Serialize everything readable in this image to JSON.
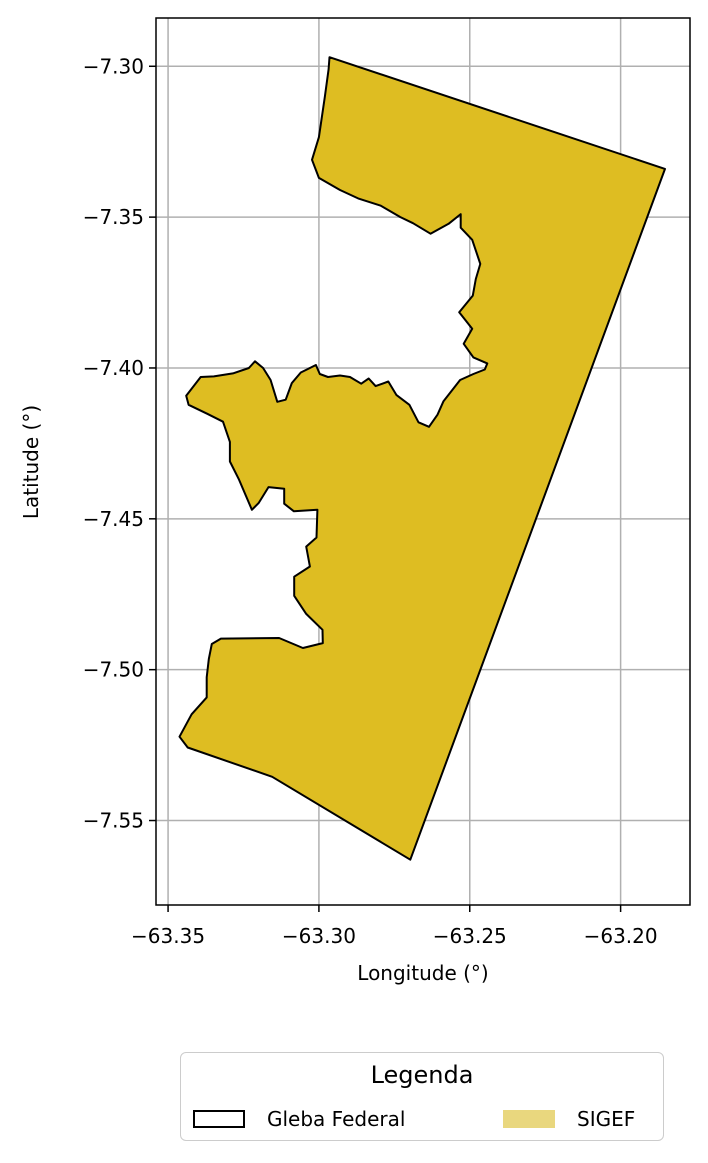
{
  "map": {
    "xlabel": "Longitude (°)",
    "ylabel": "Latitude (°)",
    "xlim": [
      -63.354,
      -63.177
    ],
    "ylim": [
      -7.578,
      -7.284
    ],
    "xticks": [
      -63.35,
      -63.3,
      -63.25,
      -63.2
    ],
    "xtick_labels": [
      "−63.35",
      "−63.30",
      "−63.25",
      "−63.20"
    ],
    "yticks": [
      -7.3,
      -7.35,
      -7.4,
      -7.45,
      -7.5,
      -7.55
    ],
    "ytick_labels": [
      "−7.30",
      "−7.35",
      "−7.40",
      "−7.45",
      "−7.50",
      "−7.55"
    ],
    "grid": true,
    "fill_color": "#DEBD22",
    "edge_color": "#000000",
    "polygon": [
      [
        -63.2965,
        -7.297
      ],
      [
        -63.1853,
        -7.334
      ],
      [
        -63.2697,
        -7.563
      ],
      [
        -63.3155,
        -7.5355
      ],
      [
        -63.3435,
        -7.5258
      ],
      [
        -63.3462,
        -7.5222
      ],
      [
        -63.3422,
        -7.5148
      ],
      [
        -63.3372,
        -7.5092
      ],
      [
        -63.3372,
        -7.5025
      ],
      [
        -63.3365,
        -7.4965
      ],
      [
        -63.3355,
        -7.4915
      ],
      [
        -63.3325,
        -7.4897
      ],
      [
        -63.3132,
        -7.4895
      ],
      [
        -63.3053,
        -7.4928
      ],
      [
        -63.2987,
        -7.4912
      ],
      [
        -63.2988,
        -7.4868
      ],
      [
        -63.3042,
        -7.4815
      ],
      [
        -63.3082,
        -7.4755
      ],
      [
        -63.3082,
        -7.4692
      ],
      [
        -63.303,
        -7.4658
      ],
      [
        -63.3042,
        -7.4592
      ],
      [
        -63.3008,
        -7.4562
      ],
      [
        -63.3005,
        -7.447
      ],
      [
        -63.3083,
        -7.4475
      ],
      [
        -63.3115,
        -7.445
      ],
      [
        -63.3115,
        -7.44
      ],
      [
        -63.3167,
        -7.4395
      ],
      [
        -63.32,
        -7.4448
      ],
      [
        -63.3222,
        -7.447
      ],
      [
        -63.3265,
        -7.437
      ],
      [
        -63.3295,
        -7.431
      ],
      [
        -63.3295,
        -7.4245
      ],
      [
        -63.3318,
        -7.4178
      ],
      [
        -63.337,
        -7.4152
      ],
      [
        -63.3432,
        -7.4122
      ],
      [
        -63.344,
        -7.4092
      ],
      [
        -63.3392,
        -7.403
      ],
      [
        -63.3348,
        -7.4028
      ],
      [
        -63.3285,
        -7.4018
      ],
      [
        -63.3232,
        -7.4
      ],
      [
        -63.3212,
        -7.3978
      ],
      [
        -63.3185,
        -7.4
      ],
      [
        -63.316,
        -7.404
      ],
      [
        -63.3138,
        -7.4112
      ],
      [
        -63.311,
        -7.4105
      ],
      [
        -63.309,
        -7.405
      ],
      [
        -63.306,
        -7.4015
      ],
      [
        -63.303,
        -7.4
      ],
      [
        -63.301,
        -7.399
      ],
      [
        -63.2997,
        -7.402
      ],
      [
        -63.297,
        -7.403
      ],
      [
        -63.293,
        -7.4025
      ],
      [
        -63.2897,
        -7.403
      ],
      [
        -63.286,
        -7.4052
      ],
      [
        -63.2835,
        -7.4035
      ],
      [
        -63.2812,
        -7.406
      ],
      [
        -63.277,
        -7.4045
      ],
      [
        -63.2743,
        -7.409
      ],
      [
        -63.27,
        -7.4122
      ],
      [
        -63.267,
        -7.418
      ],
      [
        -63.2635,
        -7.4195
      ],
      [
        -63.2607,
        -7.4155
      ],
      [
        -63.2587,
        -7.411
      ],
      [
        -63.2532,
        -7.404
      ],
      [
        -63.2488,
        -7.402
      ],
      [
        -63.245,
        -7.4005
      ],
      [
        -63.2442,
        -7.3985
      ],
      [
        -63.2488,
        -7.3965
      ],
      [
        -63.252,
        -7.392
      ],
      [
        -63.2492,
        -7.387
      ],
      [
        -63.2535,
        -7.3815
      ],
      [
        -63.249,
        -7.376
      ],
      [
        -63.248,
        -7.3705
      ],
      [
        -63.2465,
        -7.3655
      ],
      [
        -63.2492,
        -7.3575
      ],
      [
        -63.253,
        -7.3535
      ],
      [
        -63.253,
        -7.349
      ],
      [
        -63.257,
        -7.3522
      ],
      [
        -63.263,
        -7.3555
      ],
      [
        -63.2688,
        -7.352
      ],
      [
        -63.273,
        -7.35
      ],
      [
        -63.2795,
        -7.3462
      ],
      [
        -63.287,
        -7.3438
      ],
      [
        -63.293,
        -7.341
      ],
      [
        -63.3,
        -7.337
      ],
      [
        -63.3023,
        -7.331
      ],
      [
        -63.3,
        -7.3235
      ],
      [
        -63.298,
        -7.31
      ],
      [
        -63.2968,
        -7.301
      ]
    ]
  },
  "legend": {
    "title": "Legenda",
    "items": [
      {
        "label": "Gleba Federal",
        "fill": "#ffffff",
        "edge": "#000000"
      },
      {
        "label": "SIGEF",
        "fill": "#E9D77E",
        "edge": "#E9D77E"
      }
    ]
  }
}
